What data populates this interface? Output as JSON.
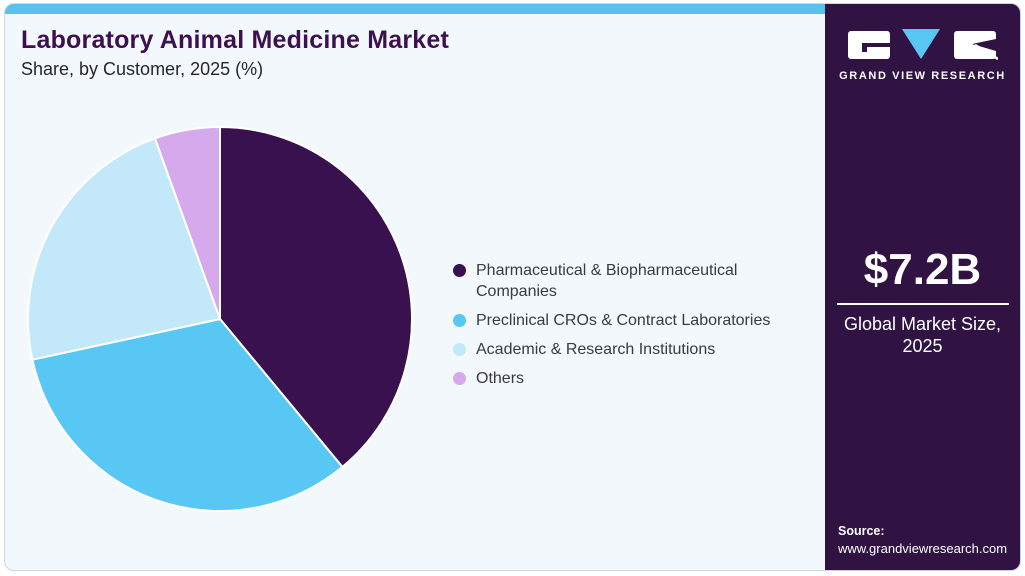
{
  "header": {
    "title": "Laboratory Animal Medicine Market",
    "subtitle": "Share, by Customer, 2025 (%)"
  },
  "chart_data": {
    "type": "pie",
    "title": "Laboratory Animal Medicine Market Share, by Customer, 2025 (%)",
    "unit": "%",
    "labels": [
      "Pharmaceutical & Biopharmaceutical Companies",
      "Preclinical CROs & Contract Laboratories",
      "Academic & Research Institutions",
      "Others"
    ],
    "values": [
      39.0,
      32.6,
      22.9,
      5.5
    ],
    "colors": [
      "#38114E",
      "#59C7F3",
      "#C3E8F9",
      "#D5A9EB"
    ],
    "start_angle_deg": 0,
    "direction": "clockwise",
    "legend_position": "right",
    "data_labels_shown": false
  },
  "sidebar": {
    "brand_name": "GRAND VIEW RESEARCH",
    "stat_value": "$7.2B",
    "stat_label": "Global Market Size, 2025",
    "source_label": "Source:",
    "source_url": "www.grandviewresearch.com"
  },
  "theme": {
    "top_bar_color": "#5BC0EA",
    "card_background": "#F3F8FC",
    "card_border": "#CBD8E0",
    "sidebar_background": "#301343",
    "title_color": "#3D1050",
    "subtitle_color": "#26262E",
    "legend_text_color": "#3A3A42",
    "accent_blue": "#59C7F3"
  }
}
